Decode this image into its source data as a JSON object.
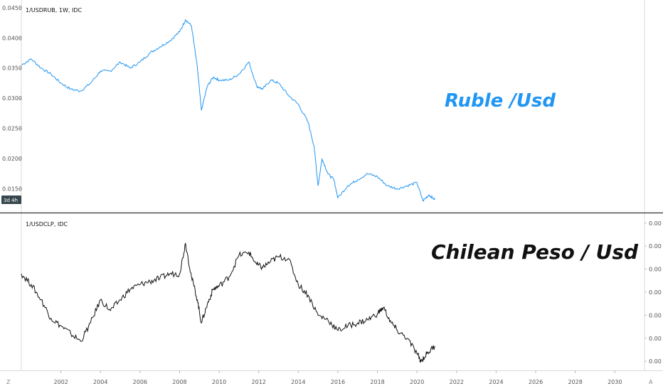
{
  "chart_data": [
    {
      "type": "line",
      "symbol_label": "1/USDRUB, 1W, IDC",
      "annotation": "Ruble /Usd",
      "color": "#2196f3",
      "ylim": [
        0.0113,
        0.0458
      ],
      "y_ticks": [
        "0.0450",
        "0.0400",
        "0.0350",
        "0.0300",
        "0.0250",
        "0.0200",
        "0.0150"
      ],
      "y_tick_values": [
        0.045,
        0.04,
        0.035,
        0.03,
        0.025,
        0.02,
        0.015
      ],
      "badge": "3d 4h",
      "series": [
        {
          "x": [
            2000.0,
            2000.5,
            2001.0,
            2001.5,
            2002.0,
            2002.5,
            2003.0,
            2003.5,
            2004.0,
            2004.5,
            2005.0,
            2005.5,
            2006.0,
            2006.5,
            2007.0,
            2007.5,
            2008.0,
            2008.3,
            2008.6,
            2008.9,
            2009.1,
            2009.4,
            2009.7,
            2010.0,
            2010.5,
            2011.0,
            2011.5,
            2011.9,
            2012.2,
            2012.6,
            2013.0,
            2013.5,
            2014.0,
            2014.5,
            2014.8,
            2015.0,
            2015.2,
            2015.5,
            2015.8,
            2016.0,
            2016.5,
            2017.0,
            2017.5,
            2018.0,
            2018.5,
            2019.0,
            2019.5,
            2020.0,
            2020.3,
            2020.6,
            2020.9
          ],
          "values": [
            0.0355,
            0.0365,
            0.035,
            0.034,
            0.0325,
            0.0315,
            0.0312,
            0.0325,
            0.0345,
            0.0345,
            0.036,
            0.035,
            0.036,
            0.0375,
            0.0385,
            0.0395,
            0.041,
            0.043,
            0.042,
            0.035,
            0.028,
            0.032,
            0.0335,
            0.033,
            0.033,
            0.034,
            0.036,
            0.032,
            0.0315,
            0.033,
            0.0325,
            0.0305,
            0.029,
            0.026,
            0.022,
            0.0155,
            0.02,
            0.0175,
            0.0165,
            0.0135,
            0.0155,
            0.0165,
            0.0175,
            0.017,
            0.0155,
            0.015,
            0.0155,
            0.016,
            0.013,
            0.014,
            0.0132
          ]
        }
      ]
    },
    {
      "type": "line",
      "symbol_label": "1/USDCLP, IDC",
      "annotation": "Chilean Peso / Usd",
      "color": "#111111",
      "ylim": [
        0,
        1
      ],
      "y_ticks": [
        "0.00",
        "0.00",
        "0.00",
        "0.00",
        "0.00",
        "0.00",
        "0.00"
      ],
      "y_tick_values": [
        0.95,
        0.8,
        0.65,
        0.5,
        0.35,
        0.2,
        0.05
      ],
      "series": [
        {
          "x": [
            2000.0,
            2000.5,
            2001.0,
            2001.5,
            2002.0,
            2002.5,
            2003.0,
            2003.5,
            2004.0,
            2004.5,
            2005.0,
            2005.5,
            2006.0,
            2006.5,
            2007.0,
            2007.5,
            2008.0,
            2008.3,
            2008.6,
            2008.9,
            2009.1,
            2009.4,
            2009.7,
            2010.0,
            2010.5,
            2011.0,
            2011.5,
            2011.9,
            2012.2,
            2012.6,
            2013.0,
            2013.5,
            2014.0,
            2014.5,
            2015.0,
            2015.5,
            2016.0,
            2016.5,
            2017.0,
            2017.5,
            2018.0,
            2018.3,
            2018.7,
            2019.0,
            2019.5,
            2020.0,
            2020.2,
            2020.5,
            2020.9
          ],
          "values": [
            0.62,
            0.55,
            0.45,
            0.33,
            0.28,
            0.23,
            0.18,
            0.3,
            0.45,
            0.38,
            0.45,
            0.52,
            0.55,
            0.57,
            0.59,
            0.62,
            0.62,
            0.82,
            0.6,
            0.45,
            0.3,
            0.42,
            0.52,
            0.54,
            0.6,
            0.74,
            0.76,
            0.68,
            0.66,
            0.7,
            0.73,
            0.72,
            0.55,
            0.48,
            0.35,
            0.32,
            0.25,
            0.28,
            0.3,
            0.32,
            0.36,
            0.4,
            0.3,
            0.25,
            0.2,
            0.1,
            0.05,
            0.1,
            0.15
          ]
        }
      ]
    }
  ],
  "x_axis": {
    "ticks": [
      "2002",
      "2004",
      "2006",
      "2008",
      "2010",
      "2012",
      "2014",
      "2016",
      "2018",
      "2020",
      "2022",
      "2024",
      "2026",
      "2028",
      "2030"
    ],
    "tick_values": [
      2002,
      2004,
      2006,
      2008,
      2010,
      2012,
      2014,
      2016,
      2018,
      2020,
      2022,
      2024,
      2026,
      2028,
      2030
    ],
    "range": [
      2000.0,
      2031.5
    ]
  },
  "corner_left": "Z",
  "corner_right": "A"
}
